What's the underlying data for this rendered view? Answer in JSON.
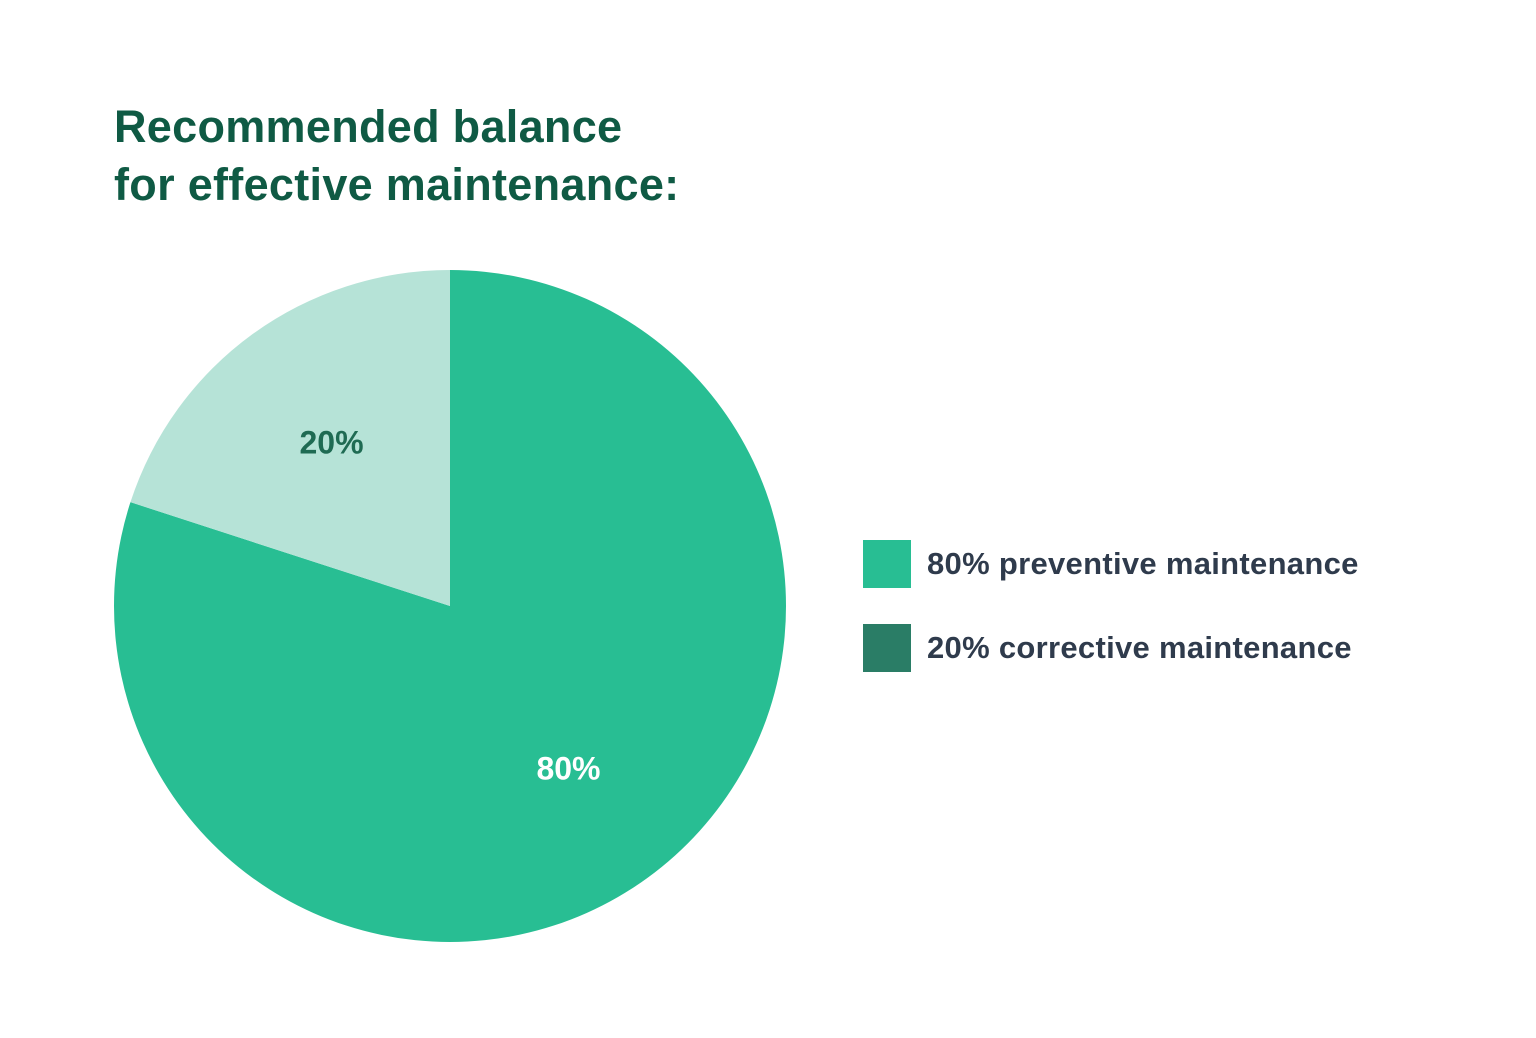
{
  "title": {
    "line1": "Recommended balance",
    "line2": "for effective maintenance:"
  },
  "slices": [
    {
      "label": "80%",
      "value": 80,
      "color": "#28BE93",
      "label_color": "#FFFFFF"
    },
    {
      "label": "20%",
      "value": 20,
      "color": "#B6E3D7",
      "label_color": "#1F6B53"
    }
  ],
  "legend": [
    {
      "text": "80% preventive maintenance",
      "color": "#28BE93"
    },
    {
      "text": "20% corrective maintenance",
      "color": "#2A7D66"
    }
  ],
  "chart_data": {
    "type": "pie",
    "title": "Recommended balance for effective maintenance:",
    "categories": [
      "preventive maintenance",
      "corrective maintenance"
    ],
    "values": [
      80,
      20
    ],
    "data_labels": [
      "80%",
      "20%"
    ],
    "legend": [
      "80% preventive maintenance",
      "20% corrective maintenance"
    ],
    "legend_position": "right",
    "colors": [
      "#28BE93",
      "#B6E3D7"
    ]
  }
}
